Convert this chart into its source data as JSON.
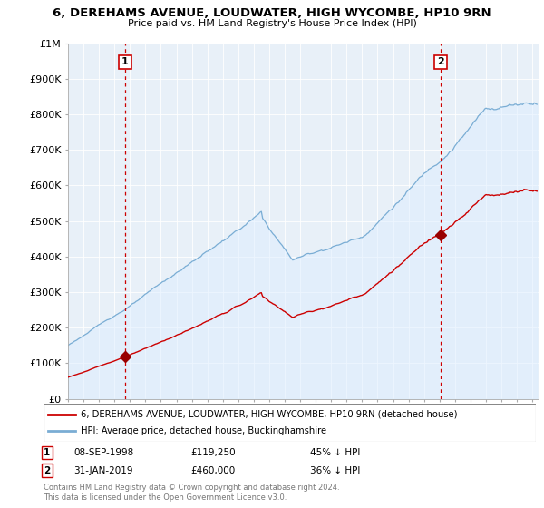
{
  "title": "6, DEREHAMS AVENUE, LOUDWATER, HIGH WYCOMBE, HP10 9RN",
  "subtitle": "Price paid vs. HM Land Registry's House Price Index (HPI)",
  "ylim": [
    0,
    1000000
  ],
  "yticks": [
    0,
    100000,
    200000,
    300000,
    400000,
    500000,
    600000,
    700000,
    800000,
    900000,
    1000000
  ],
  "ytick_labels": [
    "£0",
    "£100K",
    "£200K",
    "£300K",
    "£400K",
    "£500K",
    "£600K",
    "£700K",
    "£800K",
    "£900K",
    "£1M"
  ],
  "sale1_date": 1998.69,
  "sale1_price": 119250,
  "sale1_label": "1",
  "sale2_date": 2019.08,
  "sale2_price": 460000,
  "sale2_label": "2",
  "line_color_property": "#cc0000",
  "line_color_hpi": "#7aadd4",
  "fill_color_hpi": "#ddeeff",
  "marker_color": "#990000",
  "vline_color": "#cc0000",
  "legend_property": "6, DEREHAMS AVENUE, LOUDWATER, HIGH WYCOMBE, HP10 9RN (detached house)",
  "legend_hpi": "HPI: Average price, detached house, Buckinghamshire",
  "annotation1_date": "08-SEP-1998",
  "annotation1_price": "£119,250",
  "annotation1_pct": "45% ↓ HPI",
  "annotation2_date": "31-JAN-2019",
  "annotation2_price": "£460,000",
  "annotation2_pct": "36% ↓ HPI",
  "footnote": "Contains HM Land Registry data © Crown copyright and database right 2024.\nThis data is licensed under the Open Government Licence v3.0.",
  "background_color": "#ffffff",
  "plot_bg_color": "#e8f0f8",
  "grid_color": "#ffffff",
  "xlim_start": 1995.25,
  "xlim_end": 2025.4
}
